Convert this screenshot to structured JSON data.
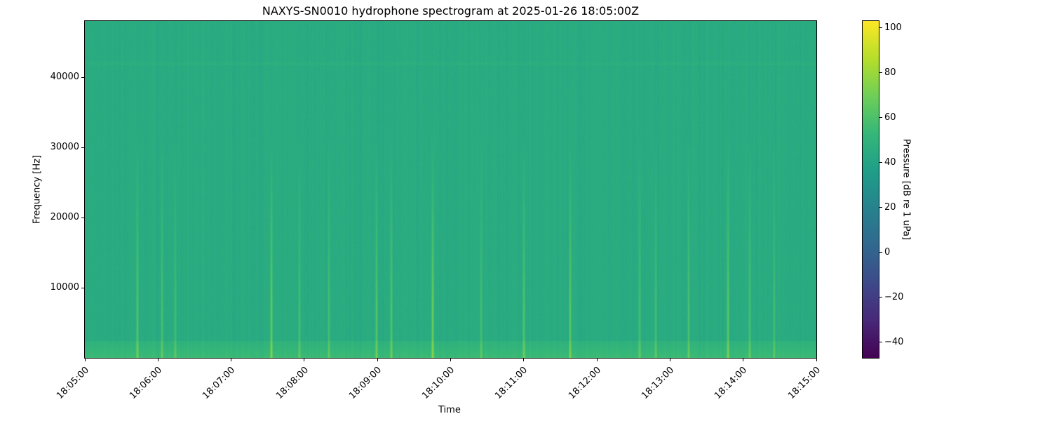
{
  "chart_data": {
    "type": "heatmap",
    "title": "NAXYS-SN0010 hydrophone spectrogram at 2025-01-26 18:05:00Z",
    "xlabel": "Time",
    "ylabel": "Frequency [Hz]",
    "colorbar_label": "Pressure [dB re 1 uPa]",
    "colormap": "viridis",
    "xlim": [
      "18:05:00",
      "18:15:00"
    ],
    "x_ticks": [
      "18:05:00",
      "18:06:00",
      "18:07:00",
      "18:08:00",
      "18:09:00",
      "18:10:00",
      "18:11:00",
      "18:12:00",
      "18:13:00",
      "18:14:00",
      "18:15:00"
    ],
    "ylim": [
      0,
      48000
    ],
    "y_ticks": [
      10000,
      20000,
      30000,
      40000
    ],
    "clim": [
      -47,
      103
    ],
    "colorbar_ticks": [
      -40,
      -20,
      0,
      20,
      40,
      60,
      80,
      100
    ],
    "background_level_db": 45,
    "low_frequency_band": {
      "freq_max_hz": 2500,
      "level_db": 55
    },
    "tonal_bands_hz": [
      42000
    ],
    "transients": [
      {
        "time": "18:05:43",
        "level_db": 62
      },
      {
        "time": "18:06:03",
        "level_db": 58
      },
      {
        "time": "18:06:14",
        "level_db": 57
      },
      {
        "time": "18:07:33",
        "level_db": 66
      },
      {
        "time": "18:07:56",
        "level_db": 58
      },
      {
        "time": "18:08:20",
        "level_db": 58
      },
      {
        "time": "18:08:59",
        "level_db": 62
      },
      {
        "time": "18:09:11",
        "level_db": 61
      },
      {
        "time": "18:09:45",
        "level_db": 68
      },
      {
        "time": "18:10:25",
        "level_db": 57
      },
      {
        "time": "18:11:00",
        "level_db": 62
      },
      {
        "time": "18:11:38",
        "level_db": 63
      },
      {
        "time": "18:12:35",
        "level_db": 58
      },
      {
        "time": "18:12:48",
        "level_db": 58
      },
      {
        "time": "18:13:15",
        "level_db": 60
      },
      {
        "time": "18:13:47",
        "level_db": 63
      },
      {
        "time": "18:14:05",
        "level_db": 59
      },
      {
        "time": "18:14:25",
        "level_db": 57
      }
    ],
    "grid": false
  }
}
